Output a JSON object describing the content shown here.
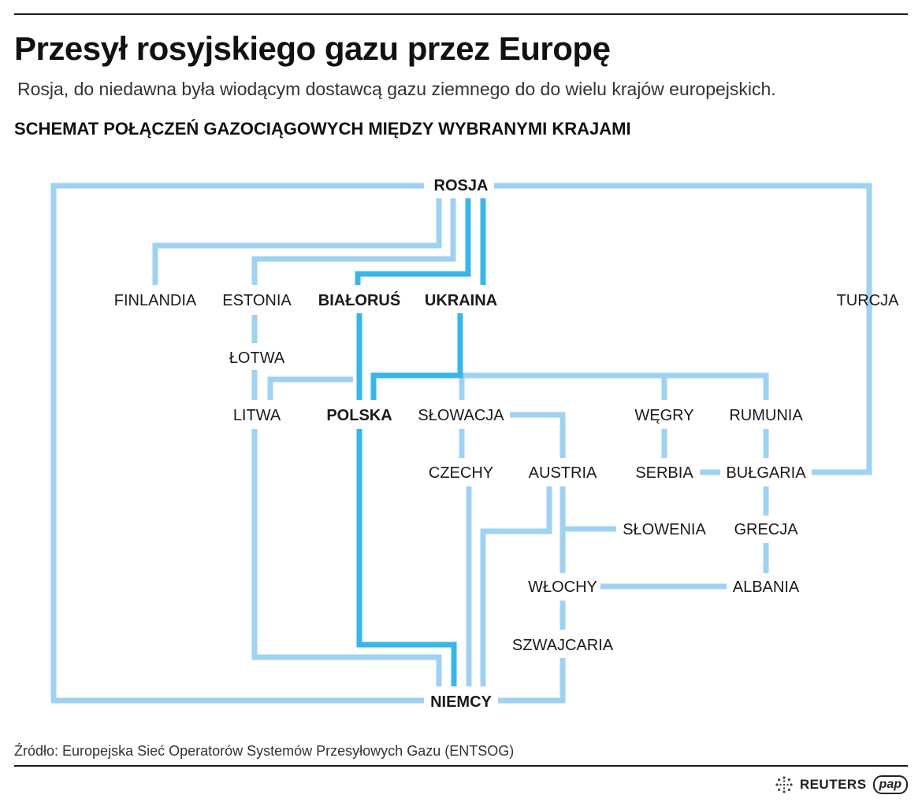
{
  "header": {
    "title": "Przesył rosyjskiego gazu przez Europę",
    "subtitle": "Rosja, do niedawna była wiodącym dostawcą gazu ziemnego do do wielu krajów europejskich.",
    "section_title": "SCHEMAT POŁĄCZEŃ GAZOCIĄGOWYCH MIĘDZY WYBRANYMI KRAJAMI"
  },
  "nodes": {
    "rosja": "ROSJA",
    "finlandia": "FINLANDIA",
    "estonia": "ESTONIA",
    "bialorus": "BIAŁORUŚ",
    "ukraina": "UKRAINA",
    "turcja": "TURCJA",
    "lotwa": "ŁOTWA",
    "litwa": "LITWA",
    "polska": "POLSKA",
    "slowacja": "SŁOWACJA",
    "wegry": "WĘGRY",
    "rumunia": "RUMUNIA",
    "czechy": "CZECHY",
    "austria": "AUSTRIA",
    "serbia": "SERBIA",
    "bulgaria": "BUŁGARIA",
    "slowenia": "SŁOWENIA",
    "grecja": "GRECJA",
    "wlochy": "WŁOCHY",
    "albania": "ALBANIA",
    "szwajcaria": "SZWAJCARIA",
    "niemcy": "NIEMCY"
  },
  "legend_colors": {
    "connection": "#9fd2f2",
    "main_transit_route": "#38b6e8"
  },
  "footer": {
    "source": "Źródło: Europejska Sieć Operatorów Systemów Przesyłowych Gazu (ENTSOG)",
    "reuters": "REUTERS",
    "pap": "pap"
  }
}
